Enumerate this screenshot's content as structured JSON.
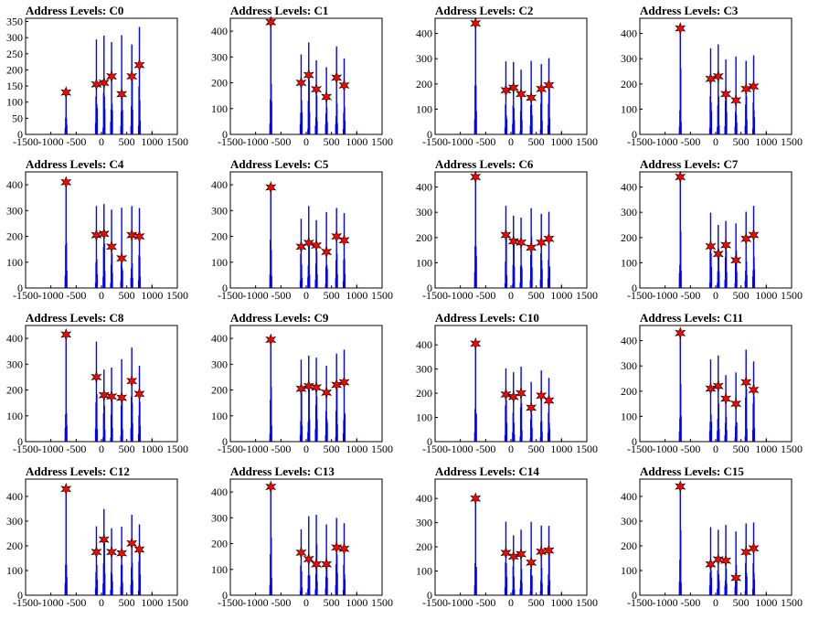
{
  "figure": {
    "colors": {
      "histogram": "#0000ff",
      "marker_fill": "#ff0000",
      "marker_edge": "#000000",
      "axes": "#000000",
      "background": "#ffffff"
    },
    "layout": "4x4 grid of histograms"
  },
  "chart_data": [
    {
      "type": "bar",
      "title": "Address Levels: C0",
      "xlim": [
        -1500,
        1500
      ],
      "ylim": [
        0,
        360
      ],
      "xticks": [
        -1500,
        -1000,
        -500,
        0,
        500,
        1000,
        1500
      ],
      "yticks": [
        0,
        50,
        100,
        150,
        200,
        250,
        300,
        350
      ],
      "peaks": [
        {
          "x": -700,
          "y": 130
        },
        {
          "x": -100,
          "y": 155
        },
        {
          "x": 50,
          "y": 160
        },
        {
          "x": 200,
          "y": 180
        },
        {
          "x": 400,
          "y": 125
        },
        {
          "x": 600,
          "y": 180
        },
        {
          "x": 750,
          "y": 215
        }
      ]
    },
    {
      "type": "bar",
      "title": "Address Levels: C1",
      "xlim": [
        -1500,
        1500
      ],
      "ylim": [
        0,
        450
      ],
      "xticks": [
        -1500,
        -1000,
        -500,
        0,
        500,
        1000,
        1500
      ],
      "yticks": [
        0,
        100,
        200,
        300,
        400
      ],
      "peaks": [
        {
          "x": -700,
          "y": 435
        },
        {
          "x": -100,
          "y": 200
        },
        {
          "x": 50,
          "y": 230
        },
        {
          "x": 200,
          "y": 175
        },
        {
          "x": 400,
          "y": 145
        },
        {
          "x": 600,
          "y": 220
        },
        {
          "x": 750,
          "y": 190
        }
      ]
    },
    {
      "type": "bar",
      "title": "Address Levels: C2",
      "xlim": [
        -1500,
        1500
      ],
      "ylim": [
        0,
        460
      ],
      "xticks": [
        -1500,
        -1000,
        -500,
        0,
        500,
        1000,
        1500
      ],
      "yticks": [
        0,
        100,
        200,
        300,
        400
      ],
      "peaks": [
        {
          "x": -700,
          "y": 440
        },
        {
          "x": -100,
          "y": 175
        },
        {
          "x": 50,
          "y": 185
        },
        {
          "x": 200,
          "y": 160
        },
        {
          "x": 400,
          "y": 145
        },
        {
          "x": 600,
          "y": 180
        },
        {
          "x": 750,
          "y": 195
        }
      ]
    },
    {
      "type": "bar",
      "title": "Address Levels: C3",
      "xlim": [
        -1500,
        1500
      ],
      "ylim": [
        0,
        460
      ],
      "xticks": [
        -1500,
        -1000,
        -500,
        0,
        500,
        1000,
        1500
      ],
      "yticks": [
        0,
        100,
        200,
        300,
        400
      ],
      "peaks": [
        {
          "x": -700,
          "y": 420
        },
        {
          "x": -100,
          "y": 220
        },
        {
          "x": 50,
          "y": 230
        },
        {
          "x": 200,
          "y": 160
        },
        {
          "x": 400,
          "y": 135
        },
        {
          "x": 600,
          "y": 180
        },
        {
          "x": 750,
          "y": 190
        }
      ]
    },
    {
      "type": "bar",
      "title": "Address Levels: C4",
      "xlim": [
        -1500,
        1500
      ],
      "ylim": [
        0,
        450
      ],
      "xticks": [
        -1500,
        -1000,
        -500,
        0,
        500,
        1000,
        1500
      ],
      "yticks": [
        0,
        100,
        200,
        300,
        400
      ],
      "peaks": [
        {
          "x": -700,
          "y": 410
        },
        {
          "x": -100,
          "y": 205
        },
        {
          "x": 50,
          "y": 210
        },
        {
          "x": 200,
          "y": 160
        },
        {
          "x": 400,
          "y": 115
        },
        {
          "x": 600,
          "y": 205
        },
        {
          "x": 750,
          "y": 200
        }
      ]
    },
    {
      "type": "bar",
      "title": "Address Levels: C5",
      "xlim": [
        -1500,
        1500
      ],
      "ylim": [
        0,
        450
      ],
      "xticks": [
        -1500,
        -1000,
        -500,
        0,
        500,
        1000,
        1500
      ],
      "yticks": [
        0,
        100,
        200,
        300,
        400
      ],
      "peaks": [
        {
          "x": -700,
          "y": 390
        },
        {
          "x": -100,
          "y": 160
        },
        {
          "x": 50,
          "y": 175
        },
        {
          "x": 200,
          "y": 165
        },
        {
          "x": 400,
          "y": 140
        },
        {
          "x": 600,
          "y": 200
        },
        {
          "x": 750,
          "y": 185
        }
      ]
    },
    {
      "type": "bar",
      "title": "Address Levels: C6",
      "xlim": [
        -1500,
        1500
      ],
      "ylim": [
        0,
        460
      ],
      "xticks": [
        -1500,
        -1000,
        -500,
        0,
        500,
        1000,
        1500
      ],
      "yticks": [
        0,
        100,
        200,
        300,
        400
      ],
      "peaks": [
        {
          "x": -700,
          "y": 440
        },
        {
          "x": -100,
          "y": 210
        },
        {
          "x": 50,
          "y": 185
        },
        {
          "x": 200,
          "y": 180
        },
        {
          "x": 400,
          "y": 160
        },
        {
          "x": 600,
          "y": 180
        },
        {
          "x": 750,
          "y": 195
        }
      ]
    },
    {
      "type": "bar",
      "title": "Address Levels: C7",
      "xlim": [
        -1500,
        1500
      ],
      "ylim": [
        0,
        460
      ],
      "xticks": [
        -1500,
        -1000,
        -500,
        0,
        500,
        1000,
        1500
      ],
      "yticks": [
        0,
        100,
        200,
        300,
        400
      ],
      "peaks": [
        {
          "x": -700,
          "y": 440
        },
        {
          "x": -100,
          "y": 165
        },
        {
          "x": 50,
          "y": 135
        },
        {
          "x": 200,
          "y": 170
        },
        {
          "x": 400,
          "y": 110
        },
        {
          "x": 600,
          "y": 195
        },
        {
          "x": 750,
          "y": 210
        }
      ]
    },
    {
      "type": "bar",
      "title": "Address Levels: C8",
      "xlim": [
        -1500,
        1500
      ],
      "ylim": [
        0,
        450
      ],
      "xticks": [
        -1500,
        -1000,
        -500,
        0,
        500,
        1000,
        1500
      ],
      "yticks": [
        0,
        100,
        200,
        300,
        400
      ],
      "peaks": [
        {
          "x": -700,
          "y": 415
        },
        {
          "x": -100,
          "y": 250
        },
        {
          "x": 50,
          "y": 180
        },
        {
          "x": 200,
          "y": 175
        },
        {
          "x": 400,
          "y": 170
        },
        {
          "x": 600,
          "y": 235
        },
        {
          "x": 750,
          "y": 185
        }
      ]
    },
    {
      "type": "bar",
      "title": "Address Levels: C9",
      "xlim": [
        -1500,
        1500
      ],
      "ylim": [
        0,
        450
      ],
      "xticks": [
        -1500,
        -1000,
        -500,
        0,
        500,
        1000,
        1500
      ],
      "yticks": [
        0,
        100,
        200,
        300,
        400
      ],
      "peaks": [
        {
          "x": -700,
          "y": 395
        },
        {
          "x": -100,
          "y": 205
        },
        {
          "x": 50,
          "y": 215
        },
        {
          "x": 200,
          "y": 210
        },
        {
          "x": 400,
          "y": 190
        },
        {
          "x": 600,
          "y": 220
        },
        {
          "x": 750,
          "y": 230
        }
      ]
    },
    {
      "type": "bar",
      "title": "Address Levels: C10",
      "xlim": [
        -1500,
        1500
      ],
      "ylim": [
        0,
        480
      ],
      "xticks": [
        -1500,
        -1000,
        -500,
        0,
        500,
        1000,
        1500
      ],
      "yticks": [
        0,
        100,
        200,
        300,
        400
      ],
      "peaks": [
        {
          "x": -700,
          "y": 405
        },
        {
          "x": -100,
          "y": 195
        },
        {
          "x": 50,
          "y": 185
        },
        {
          "x": 200,
          "y": 200
        },
        {
          "x": 400,
          "y": 140
        },
        {
          "x": 600,
          "y": 190
        },
        {
          "x": 750,
          "y": 170
        }
      ]
    },
    {
      "type": "bar",
      "title": "Address Levels: C11",
      "xlim": [
        -1500,
        1500
      ],
      "ylim": [
        0,
        460
      ],
      "xticks": [
        -1500,
        -1000,
        -500,
        0,
        500,
        1000,
        1500
      ],
      "yticks": [
        0,
        100,
        200,
        300,
        400
      ],
      "peaks": [
        {
          "x": -700,
          "y": 430
        },
        {
          "x": -100,
          "y": 210
        },
        {
          "x": 50,
          "y": 220
        },
        {
          "x": 200,
          "y": 170
        },
        {
          "x": 400,
          "y": 150
        },
        {
          "x": 600,
          "y": 235
        },
        {
          "x": 750,
          "y": 205
        }
      ]
    },
    {
      "type": "bar",
      "title": "Address Levels: C12",
      "xlim": [
        -1500,
        1500
      ],
      "ylim": [
        0,
        470
      ],
      "xticks": [
        -1500,
        -1000,
        -500,
        0,
        500,
        1000,
        1500
      ],
      "yticks": [
        0,
        100,
        200,
        300,
        400
      ],
      "peaks": [
        {
          "x": -700,
          "y": 430
        },
        {
          "x": -100,
          "y": 175
        },
        {
          "x": 50,
          "y": 225
        },
        {
          "x": 200,
          "y": 175
        },
        {
          "x": 400,
          "y": 170
        },
        {
          "x": 600,
          "y": 210
        },
        {
          "x": 750,
          "y": 185
        }
      ]
    },
    {
      "type": "bar",
      "title": "Address Levels: C13",
      "xlim": [
        -1500,
        1500
      ],
      "ylim": [
        0,
        450
      ],
      "xticks": [
        -1500,
        -1000,
        -500,
        0,
        500,
        1000,
        1500
      ],
      "yticks": [
        0,
        100,
        200,
        300,
        400
      ],
      "peaks": [
        {
          "x": -700,
          "y": 420
        },
        {
          "x": -100,
          "y": 165
        },
        {
          "x": 50,
          "y": 140
        },
        {
          "x": 200,
          "y": 120
        },
        {
          "x": 400,
          "y": 120
        },
        {
          "x": 600,
          "y": 185
        },
        {
          "x": 750,
          "y": 180
        }
      ]
    },
    {
      "type": "bar",
      "title": "Address Levels: C14",
      "xlim": [
        -1500,
        1500
      ],
      "ylim": [
        0,
        480
      ],
      "xticks": [
        -1500,
        -1000,
        -500,
        0,
        500,
        1000,
        1500
      ],
      "yticks": [
        0,
        100,
        200,
        300,
        400
      ],
      "peaks": [
        {
          "x": -700,
          "y": 400
        },
        {
          "x": -100,
          "y": 175
        },
        {
          "x": 50,
          "y": 160
        },
        {
          "x": 200,
          "y": 170
        },
        {
          "x": 400,
          "y": 135
        },
        {
          "x": 600,
          "y": 180
        },
        {
          "x": 750,
          "y": 185
        }
      ]
    },
    {
      "type": "bar",
      "title": "Address Levels: C15",
      "xlim": [
        -1500,
        1500
      ],
      "ylim": [
        0,
        470
      ],
      "xticks": [
        -1500,
        -1000,
        -500,
        0,
        500,
        1000,
        1500
      ],
      "yticks": [
        0,
        100,
        200,
        300,
        400
      ],
      "peaks": [
        {
          "x": -700,
          "y": 440
        },
        {
          "x": -100,
          "y": 125
        },
        {
          "x": 50,
          "y": 145
        },
        {
          "x": 200,
          "y": 140
        },
        {
          "x": 400,
          "y": 70
        },
        {
          "x": 600,
          "y": 175
        },
        {
          "x": 750,
          "y": 190
        }
      ]
    }
  ]
}
